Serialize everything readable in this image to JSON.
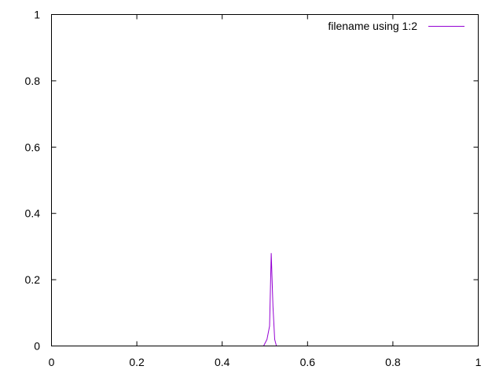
{
  "chart_data": {
    "type": "line",
    "xlim": [
      0,
      1
    ],
    "ylim": [
      0,
      1
    ],
    "x_ticks": [
      "0",
      "0.2",
      "0.4",
      "0.6",
      "0.8",
      "1"
    ],
    "y_ticks": [
      "0",
      "0.2",
      "0.4",
      "0.6",
      "0.8",
      "1"
    ],
    "grid": false,
    "legend_position": "top-right",
    "series": [
      {
        "name": "filename using 1:2",
        "color": "#9400d3",
        "x": [
          0.497,
          0.505,
          0.511,
          0.515,
          0.519,
          0.523,
          0.527
        ],
        "y": [
          0.0,
          0.02,
          0.06,
          0.28,
          0.12,
          0.02,
          0.0
        ]
      }
    ]
  }
}
